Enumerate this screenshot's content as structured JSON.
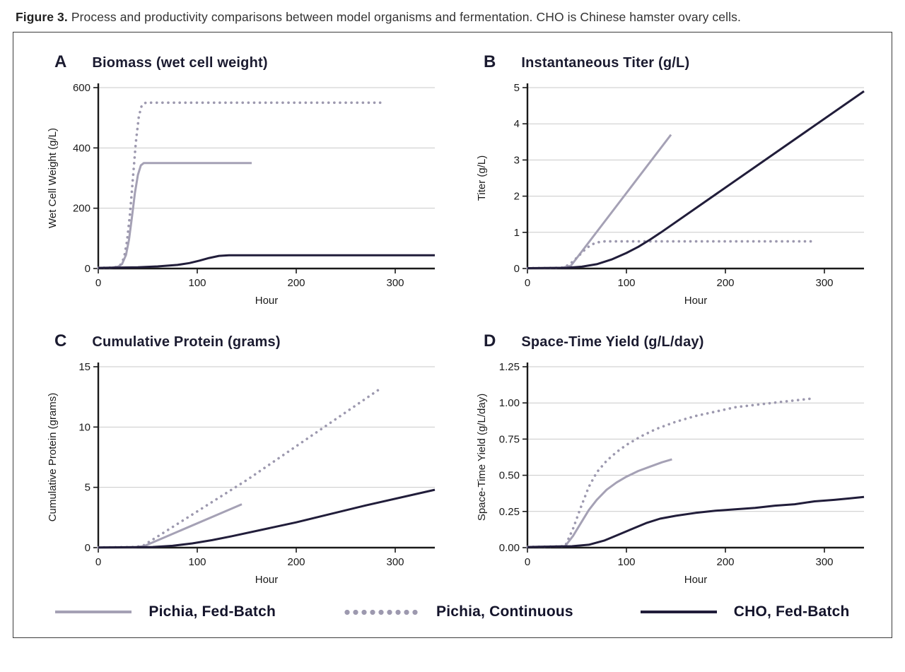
{
  "figure": {
    "label": "Figure 3.",
    "caption": "Process and productivity comparisons between model organisms and fermentation. CHO is Chinese hamster ovary cells."
  },
  "colors": {
    "pichia_fed_batch": "#a5a1b5",
    "pichia_continuous": "#9d99af",
    "cho_fed_batch": "#211d3a",
    "grid": "#c9c9c9",
    "axis": "#1a1a1a"
  },
  "legend": [
    {
      "label": "Pichia, Fed-Batch",
      "style": "solid",
      "color_key": "pichia_fed_batch"
    },
    {
      "label": "Pichia, Continuous",
      "style": "dotted",
      "color_key": "pichia_continuous"
    },
    {
      "label": "CHO, Fed-Batch",
      "style": "solid",
      "color_key": "cho_fed_batch"
    }
  ],
  "chart_data": [
    {
      "panel_label": "A",
      "title": "Biomass (wet cell weight)",
      "type": "line",
      "xlabel": "Hour",
      "ylabel": "Wet Cell Weight (g/L)",
      "xlim": [
        0,
        340
      ],
      "ylim": [
        0,
        600
      ],
      "xticks": [
        0,
        100,
        200,
        300
      ],
      "xtick_labels": [
        "0",
        "100",
        "200",
        "300"
      ],
      "yticks": [
        0,
        200,
        400,
        600
      ],
      "ytick_labels": [
        "0",
        "200",
        "400",
        "600"
      ],
      "series": [
        {
          "name": "Pichia, Fed-Batch",
          "style": "solid",
          "color_key": "pichia_fed_batch",
          "points": [
            [
              0,
              2
            ],
            [
              14,
              3
            ],
            [
              20,
              6
            ],
            [
              24,
              15
            ],
            [
              28,
              45
            ],
            [
              31,
              95
            ],
            [
              34,
              170
            ],
            [
              37,
              250
            ],
            [
              40,
              310
            ],
            [
              43,
              342
            ],
            [
              46,
              350
            ],
            [
              155,
              350
            ]
          ]
        },
        {
          "name": "Pichia, Continuous",
          "style": "dotted",
          "color_key": "pichia_continuous",
          "points": [
            [
              0,
              2
            ],
            [
              16,
              3
            ],
            [
              22,
              10
            ],
            [
              26,
              35
            ],
            [
              29,
              90
            ],
            [
              32,
              180
            ],
            [
              35,
              300
            ],
            [
              38,
              420
            ],
            [
              41,
              505
            ],
            [
              44,
              542
            ],
            [
              48,
              550
            ],
            [
              287,
              550
            ]
          ]
        },
        {
          "name": "CHO, Fed-Batch",
          "style": "solid",
          "color_key": "cho_fed_batch",
          "points": [
            [
              0,
              2
            ],
            [
              40,
              4
            ],
            [
              60,
              7
            ],
            [
              80,
              12
            ],
            [
              92,
              18
            ],
            [
              102,
              26
            ],
            [
              112,
              35
            ],
            [
              122,
              42
            ],
            [
              132,
              44
            ],
            [
              340,
              44
            ]
          ]
        }
      ]
    },
    {
      "panel_label": "B",
      "title": "Instantaneous Titer (g/L)",
      "type": "line",
      "xlabel": "Hour",
      "ylabel": "Titer (g/L)",
      "xlim": [
        0,
        340
      ],
      "ylim": [
        0,
        5
      ],
      "xticks": [
        0,
        100,
        200,
        300
      ],
      "xtick_labels": [
        "0",
        "100",
        "200",
        "300"
      ],
      "yticks": [
        0,
        1,
        2,
        3,
        4,
        5
      ],
      "ytick_labels": [
        "0",
        "1",
        "2",
        "3",
        "4",
        "5"
      ],
      "series": [
        {
          "name": "Pichia, Fed-Batch",
          "style": "solid",
          "color_key": "pichia_fed_batch",
          "points": [
            [
              0,
              0.01
            ],
            [
              35,
              0.02
            ],
            [
              44,
              0.08
            ],
            [
              145,
              3.7
            ]
          ]
        },
        {
          "name": "Pichia, Continuous",
          "style": "dotted",
          "color_key": "pichia_continuous",
          "points": [
            [
              0,
              0.01
            ],
            [
              34,
              0.02
            ],
            [
              42,
              0.1
            ],
            [
              50,
              0.3
            ],
            [
              58,
              0.52
            ],
            [
              64,
              0.65
            ],
            [
              70,
              0.72
            ],
            [
              78,
              0.75
            ],
            [
              287,
              0.75
            ]
          ]
        },
        {
          "name": "CHO, Fed-Batch",
          "style": "solid",
          "color_key": "cho_fed_batch",
          "points": [
            [
              0,
              0.01
            ],
            [
              40,
              0.02
            ],
            [
              55,
              0.05
            ],
            [
              70,
              0.12
            ],
            [
              85,
              0.25
            ],
            [
              100,
              0.43
            ],
            [
              112,
              0.6
            ],
            [
              124,
              0.8
            ],
            [
              135,
              1.0
            ],
            [
              340,
              4.9
            ]
          ]
        }
      ]
    },
    {
      "panel_label": "C",
      "title": "Cumulative Protein (grams)",
      "type": "line",
      "xlabel": "Hour",
      "ylabel": "Cumulative Protein (grams)",
      "xlim": [
        0,
        340
      ],
      "ylim": [
        0,
        15
      ],
      "xticks": [
        0,
        100,
        200,
        300
      ],
      "xtick_labels": [
        "0",
        "100",
        "200",
        "300"
      ],
      "yticks": [
        0,
        5,
        10,
        15
      ],
      "ytick_labels": [
        "0",
        "5",
        "10",
        "15"
      ],
      "series": [
        {
          "name": "Pichia, Fed-Batch",
          "style": "solid",
          "color_key": "pichia_fed_batch",
          "points": [
            [
              0,
              0.02
            ],
            [
              38,
              0.04
            ],
            [
              46,
              0.12
            ],
            [
              145,
              3.6
            ]
          ]
        },
        {
          "name": "Pichia, Continuous",
          "style": "dotted",
          "color_key": "pichia_continuous",
          "points": [
            [
              0,
              0.02
            ],
            [
              38,
              0.05
            ],
            [
              46,
              0.2
            ],
            [
              150,
              5.6
            ],
            [
              287,
              13.3
            ]
          ]
        },
        {
          "name": "CHO, Fed-Batch",
          "style": "solid",
          "color_key": "cho_fed_batch",
          "points": [
            [
              0,
              0.02
            ],
            [
              55,
              0.05
            ],
            [
              75,
              0.15
            ],
            [
              95,
              0.35
            ],
            [
              115,
              0.62
            ],
            [
              135,
              0.95
            ],
            [
              200,
              2.1
            ],
            [
              270,
              3.5
            ],
            [
              340,
              4.8
            ]
          ]
        }
      ]
    },
    {
      "panel_label": "D",
      "title": "Space-Time Yield (g/L/day)",
      "type": "line",
      "xlabel": "Hour",
      "ylabel": "Space-Time Yield (g/L/day)",
      "xlim": [
        0,
        340
      ],
      "ylim": [
        0,
        1.25
      ],
      "xticks": [
        0,
        100,
        200,
        300
      ],
      "xtick_labels": [
        "0",
        "100",
        "200",
        "300"
      ],
      "yticks": [
        0,
        0.25,
        0.5,
        0.75,
        1.0,
        1.25
      ],
      "ytick_labels": [
        "0.00",
        "0.25",
        "0.50",
        "0.75",
        "1.00",
        "1.25"
      ],
      "series": [
        {
          "name": "Pichia, Fed-Batch",
          "style": "solid",
          "color_key": "pichia_fed_batch",
          "points": [
            [
              0,
              0.005
            ],
            [
              38,
              0.01
            ],
            [
              46,
              0.08
            ],
            [
              54,
              0.17
            ],
            [
              62,
              0.26
            ],
            [
              70,
              0.33
            ],
            [
              80,
              0.4
            ],
            [
              90,
              0.45
            ],
            [
              100,
              0.49
            ],
            [
              112,
              0.53
            ],
            [
              124,
              0.56
            ],
            [
              136,
              0.59
            ],
            [
              146,
              0.61
            ]
          ]
        },
        {
          "name": "Pichia, Continuous",
          "style": "dotted",
          "color_key": "pichia_continuous",
          "points": [
            [
              0,
              0.005
            ],
            [
              38,
              0.01
            ],
            [
              46,
              0.13
            ],
            [
              54,
              0.28
            ],
            [
              62,
              0.42
            ],
            [
              70,
              0.52
            ],
            [
              80,
              0.6
            ],
            [
              90,
              0.66
            ],
            [
              100,
              0.71
            ],
            [
              115,
              0.77
            ],
            [
              130,
              0.82
            ],
            [
              150,
              0.87
            ],
            [
              170,
              0.91
            ],
            [
              190,
              0.94
            ],
            [
              210,
              0.97
            ],
            [
              235,
              0.99
            ],
            [
              260,
              1.01
            ],
            [
              287,
              1.03
            ]
          ]
        },
        {
          "name": "CHO, Fed-Batch",
          "style": "solid",
          "color_key": "cho_fed_batch",
          "points": [
            [
              0,
              0.004
            ],
            [
              45,
              0.01
            ],
            [
              62,
              0.02
            ],
            [
              78,
              0.05
            ],
            [
              92,
              0.09
            ],
            [
              106,
              0.13
            ],
            [
              120,
              0.17
            ],
            [
              134,
              0.2
            ],
            [
              150,
              0.22
            ],
            [
              170,
              0.24
            ],
            [
              190,
              0.255
            ],
            [
              210,
              0.265
            ],
            [
              230,
              0.275
            ],
            [
              250,
              0.29
            ],
            [
              270,
              0.3
            ],
            [
              290,
              0.32
            ],
            [
              310,
              0.33
            ],
            [
              325,
              0.34
            ],
            [
              340,
              0.35
            ]
          ]
        }
      ]
    }
  ]
}
